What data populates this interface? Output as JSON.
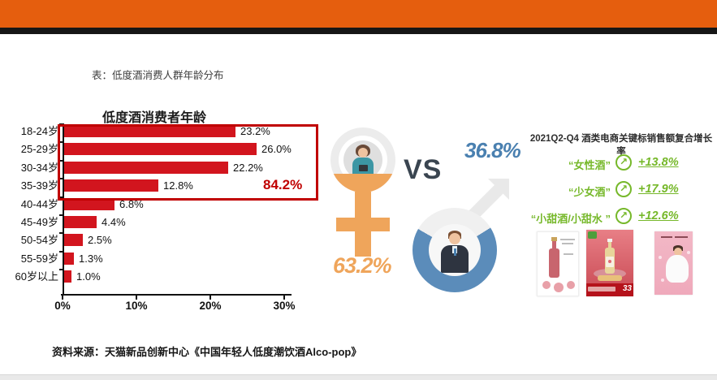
{
  "header": {
    "caption": "表：低度酒消费人群年龄分布"
  },
  "chart_data": {
    "type": "bar",
    "orientation": "horizontal",
    "title": "低度酒消费者年龄",
    "categories": [
      "18-24岁",
      "25-29岁",
      "30-34岁",
      "35-39岁",
      "40-44岁",
      "45-49岁",
      "50-54岁",
      "55-59岁",
      "60岁以上"
    ],
    "values": [
      23.2,
      26.0,
      22.2,
      12.8,
      6.8,
      4.4,
      2.5,
      1.3,
      1.0
    ],
    "value_labels": [
      "23.2%",
      "26.0%",
      "22.2%",
      "12.8%",
      "6.8%",
      "4.4%",
      "2.5%",
      "1.3%",
      "1.0%"
    ],
    "xlim": [
      0,
      30
    ],
    "x_ticks": [
      {
        "value": 0,
        "label": "0%"
      },
      {
        "value": 10,
        "label": "10%"
      },
      {
        "value": 20,
        "label": "20%"
      },
      {
        "value": 30,
        "label": "30%"
      }
    ],
    "grid": false,
    "bar_color": "#D2151E",
    "highlight": {
      "label": "84.2%",
      "covers_categories": [
        "18-24岁",
        "25-29岁",
        "30-34岁",
        "35-39岁"
      ],
      "box_color": "#C00000"
    }
  },
  "comparison": {
    "female_value": "63.2%",
    "vs_label": "VS",
    "male_value": "36.8%"
  },
  "growth": {
    "title": "2021Q2-Q4 酒类电商关键标销售额复合增长率",
    "items": [
      {
        "label": "“女性酒”",
        "value": "+13.8%"
      },
      {
        "label": "“少女酒”",
        "value": "+17.9%"
      },
      {
        "label": "“小甜酒/小甜水 ”",
        "value": "+12.6%"
      }
    ],
    "arrow_icon": "↗"
  },
  "products": {
    "price_badge": "33"
  },
  "footer": {
    "source": "资料来源：天猫新品创新中心《中国年轻人低度潮饮酒Alco-pop》"
  },
  "colors": {
    "accent_orange": "#E55E0E",
    "bar_red": "#D2151E",
    "highlight_red": "#C00000",
    "female_orange": "#EFA55B",
    "male_blue": "#5B8CBA",
    "male_value_blue": "#4A80B0",
    "vs_dark": "#3A4550",
    "growth_green": "#76B82A"
  }
}
